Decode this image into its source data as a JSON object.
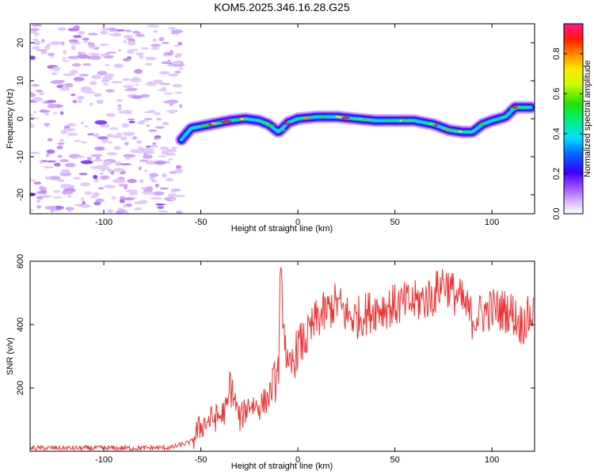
{
  "title": "KOM5.2025.346.16.28.G25",
  "chart_data": [
    {
      "type": "heatmap",
      "name": "spectrogram",
      "xlabel": "Height of straight line (km)",
      "ylabel": "Frequency (Hz)",
      "xlim": [
        -138,
        122
      ],
      "ylim": [
        -25,
        25
      ],
      "xticks": [
        -100,
        -50,
        0,
        50,
        100
      ],
      "yticks": [
        -20,
        -10,
        0,
        10,
        20
      ],
      "noise_region_x": [
        -138,
        -60
      ],
      "ridge": {
        "x": [
          -60,
          -55,
          -45,
          -35,
          -27,
          -20,
          -15,
          -10,
          -5,
          0,
          10,
          20,
          30,
          40,
          50,
          60,
          70,
          78,
          85,
          90,
          95,
          100,
          107,
          112,
          120
        ],
        "freq": [
          -5.5,
          -2.5,
          -1.5,
          -0.5,
          0.0,
          -0.5,
          -1.5,
          -3.5,
          -1.0,
          0.0,
          0.5,
          0.5,
          0.0,
          -0.5,
          -0.5,
          -0.5,
          -1.5,
          -3.0,
          -3.5,
          -3.5,
          -1.5,
          -0.5,
          0.5,
          3.0,
          3.0
        ]
      },
      "colorbar": {
        "label": "Normalized spectral amplitude",
        "ticks": [
          "0.0",
          "0.2",
          "0.4",
          "0.6",
          "0.8"
        ],
        "range": [
          0.0,
          0.95
        ]
      }
    },
    {
      "type": "line",
      "name": "snr",
      "xlabel": "Height of straight line (km)",
      "ylabel": "SNR (v/v)",
      "xlim": [
        -138,
        122
      ],
      "ylim": [
        0,
        600
      ],
      "xticks": [
        -100,
        -50,
        0,
        50,
        100
      ],
      "yticks": [
        200,
        400,
        600
      ],
      "color": "#ee3333",
      "series": [
        {
          "name": "SNR",
          "x": [
            -138,
            -120,
            -100,
            -80,
            -65,
            -55,
            -50,
            -45,
            -40,
            -36,
            -35,
            -30,
            -25,
            -20,
            -15,
            -10,
            -9,
            -5,
            0,
            5,
            10,
            15,
            20,
            25,
            30,
            40,
            50,
            60,
            70,
            75,
            80,
            85,
            90,
            100,
            110,
            115,
            122
          ],
          "y": [
            10,
            10,
            10,
            10,
            12,
            30,
            80,
            100,
            110,
            140,
            220,
            100,
            150,
            140,
            170,
            250,
            550,
            230,
            330,
            360,
            420,
            440,
            470,
            430,
            420,
            450,
            460,
            470,
            490,
            540,
            500,
            470,
            420,
            450,
            440,
            400,
            440
          ]
        }
      ]
    }
  ]
}
